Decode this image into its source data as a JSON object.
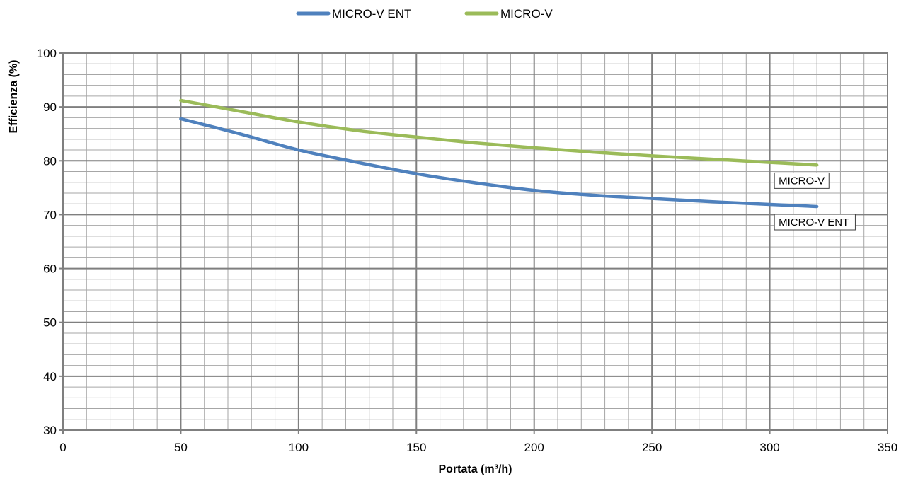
{
  "chart_data": {
    "type": "line",
    "title": "",
    "xlabel": "Portata (m³/h)",
    "ylabel": "Efficienza (%)",
    "xlim": [
      0,
      350
    ],
    "ylim": [
      30,
      100
    ],
    "x_ticks": [
      0,
      50,
      100,
      150,
      200,
      250,
      300,
      350
    ],
    "y_ticks": [
      30,
      40,
      50,
      60,
      70,
      80,
      90,
      100
    ],
    "x_tick_labels": [
      "0",
      "50",
      "100",
      "150",
      "200",
      "250",
      "300",
      "350"
    ],
    "y_tick_labels": [
      "30",
      "40",
      "50",
      "60",
      "70",
      "80",
      "90",
      "100"
    ],
    "grid": true,
    "minor_grid": {
      "x_step": 10,
      "y_step": 2
    },
    "legend_position": "top-center",
    "series": [
      {
        "name": "MICRO-V ENT",
        "color": "#4f81bd",
        "x": [
          50,
          75,
          100,
          125,
          150,
          175,
          200,
          225,
          250,
          275,
          300,
          320
        ],
        "y": [
          87.8,
          85.0,
          82.0,
          79.7,
          77.6,
          75.9,
          74.5,
          73.6,
          73.0,
          72.4,
          71.9,
          71.5
        ]
      },
      {
        "name": "MICRO-V",
        "color": "#9bbb59",
        "x": [
          50,
          75,
          100,
          125,
          150,
          175,
          200,
          225,
          250,
          275,
          300,
          320
        ],
        "y": [
          91.2,
          89.2,
          87.2,
          85.6,
          84.4,
          83.3,
          82.4,
          81.6,
          80.9,
          80.3,
          79.7,
          79.2
        ]
      }
    ],
    "annotations": [
      {
        "text": "MICRO-V",
        "series": "MICRO-V"
      },
      {
        "text": "MICRO-V ENT",
        "series": "MICRO-V ENT"
      }
    ]
  }
}
